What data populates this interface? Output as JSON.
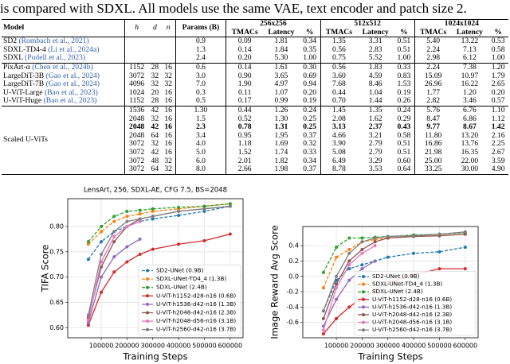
{
  "caption": "is compared with SDXL. All models use the same VAE, text encoder and patch size 2.",
  "table": {
    "columns": [
      "Model",
      "h",
      "d",
      "n",
      "Params (B)"
    ],
    "resolutions": [
      "256x256",
      "512x512",
      "1024x1024"
    ],
    "subcolumns": [
      "TMACs",
      "Latency",
      "%"
    ],
    "rows": [
      {
        "model": "SD2",
        "cite": "(Rombach et al., 2021)",
        "cells": [
          "0.9",
          "0.09",
          "1.81",
          "0.34",
          "1.35",
          "3.31",
          "0.51",
          "5.40",
          "13.22",
          "0.53"
        ]
      },
      {
        "model": "SDXL-TD4-4",
        "cite": "(Li et al., 2024a)",
        "cells": [
          "1.3",
          "0.14",
          "1.84",
          "0.35",
          "0.56",
          "2.83",
          "0.51",
          "2.24",
          "7.13",
          "0.58"
        ]
      },
      {
        "model": "SDXL",
        "cite": "(Podell et al., 2023)",
        "cells": [
          "2.4",
          "0.20",
          "5.30",
          "1.00",
          "0.75",
          "5.52",
          "1.00",
          "2.98",
          "6.12",
          "1.00"
        ]
      },
      {
        "model": "PixArt-α",
        "cite": "(Chen et al., 2024b)",
        "hdn": [
          "1152",
          "28",
          "16"
        ],
        "cells": [
          "0.6",
          "0.14",
          "1.61",
          "0.30",
          "0.56",
          "1.83",
          "0.33",
          "2.24",
          "7.38",
          "1.20"
        ]
      },
      {
        "model": "LargeDiT-3B",
        "cite": "(Gao et al., 2024)",
        "hdn": [
          "3072",
          "32",
          "32"
        ],
        "cells": [
          "3.0",
          "0.90",
          "3.65",
          "0.69",
          "3.60",
          "4.59",
          "0.83",
          "15.09",
          "10.97",
          "1.79"
        ]
      },
      {
        "model": "LargeDiT-7B",
        "cite": "(Gao et al., 2024)",
        "hdn": [
          "4096",
          "32",
          "32"
        ],
        "cells": [
          "7.0",
          "1.90",
          "4.97",
          "0.94",
          "7.68",
          "8.46",
          "1.53",
          "26.96",
          "16.22",
          "2.65"
        ]
      },
      {
        "model": "U-ViT-Large",
        "cite": "(Bao et al., 2023)",
        "hdn": [
          "1024",
          "20",
          "16"
        ],
        "cells": [
          "0.3",
          "0.11",
          "1.07",
          "0.20",
          "0.44",
          "1.04",
          "0.19",
          "1.77",
          "1.20",
          "0.20"
        ]
      },
      {
        "model": "U-ViT-Huge",
        "cite": "(Bao et al., 2023)",
        "hdn": [
          "1152",
          "28",
          "16"
        ],
        "cells": [
          "0.5",
          "0.17",
          "0.99",
          "0.19",
          "0.70",
          "1.44",
          "0.26",
          "2.82",
          "3.46",
          "0.57"
        ]
      }
    ],
    "group_label": "Scaled U-ViTs",
    "scaled_rows": [
      {
        "hdn": [
          "1536",
          "42",
          "16"
        ],
        "cells": [
          "1.30",
          "0.44",
          "1.26",
          "0.24",
          "1.45",
          "1.35",
          "0.24",
          "5.76",
          "6.76",
          "1.10"
        ]
      },
      {
        "hdn": [
          "2048",
          "32",
          "16"
        ],
        "cells": [
          "1.5",
          "0.52",
          "1.30",
          "0.25",
          "2.08",
          "1.62",
          "0.29",
          "8.47",
          "6.86",
          "1.12"
        ]
      },
      {
        "hdn": [
          "2048",
          "42",
          "16"
        ],
        "bold": true,
        "cells": [
          "2.3",
          "0.78",
          "1.31",
          "0.25",
          "3.13",
          "2.37",
          "0.43",
          "9.77",
          "8.67",
          "1.42"
        ]
      },
      {
        "hdn": [
          "2048",
          "64",
          "16"
        ],
        "cells": [
          "3.4",
          "0.95",
          "1.95",
          "0.37",
          "4.66",
          "3.21",
          "0.58",
          "11.80",
          "13.20",
          "2.16"
        ]
      },
      {
        "hdn": [
          "3072",
          "32",
          "16"
        ],
        "cells": [
          "4.0",
          "1.18",
          "1.69",
          "0.32",
          "3.90",
          "2.79",
          "0.51",
          "16.86",
          "13.76",
          "2.25"
        ]
      },
      {
        "hdn": [
          "3072",
          "42",
          "16"
        ],
        "cells": [
          "5.0",
          "1.52",
          "1.74",
          "0.33",
          "5.08",
          "2.79",
          "0.51",
          "21.98",
          "16.35",
          "2.67"
        ]
      },
      {
        "hdn": [
          "3072",
          "48",
          "32"
        ],
        "cells": [
          "6.0",
          "2.01",
          "1.82",
          "0.34",
          "6.49",
          "3.29",
          "0.60",
          "25.00",
          "22.00",
          "3.59"
        ]
      },
      {
        "hdn": [
          "3072",
          "64",
          "32"
        ],
        "cells": [
          "8.0",
          "2.66",
          "1.98",
          "0.37",
          "8.78",
          "3.53",
          "0.64",
          "33.25",
          "30.00",
          "4.90"
        ]
      }
    ]
  },
  "chart_data": [
    {
      "type": "line",
      "title": "LensArt, 256, SDXL-AE, CFG 7.5, BS=2048",
      "xlabel": "Training Steps",
      "ylabel": "TIFA Score",
      "grid": true,
      "legend": "lower right",
      "x": [
        50000,
        100000,
        150000,
        200000,
        250000,
        300000,
        400000,
        500000,
        600000
      ],
      "xlim": [
        -30000,
        650000
      ],
      "xticks": [
        100000,
        200000,
        300000,
        400000,
        500000,
        600000
      ],
      "ylim": [
        0.58,
        0.855
      ],
      "yticks": [
        {
          "value": 0.6,
          "label": "0.60"
        },
        {
          "value": 0.65,
          "label": "0.65"
        },
        {
          "value": 0.7,
          "label": "0.70"
        },
        {
          "value": 0.75,
          "label": "0.75"
        },
        {
          "value": 0.8,
          "label": "0.80"
        }
      ],
      "series": [
        {
          "name": "SD2-UNet (0.9B)",
          "color": "#1f77b4",
          "dashed": true,
          "values": [
            0.735,
            0.77,
            0.79,
            0.8,
            0.81,
            0.815,
            0.822,
            0.83,
            0.84
          ]
        },
        {
          "name": "SDXL-UNet-TD4_4 (1.3B)",
          "color": "#ff7f0e",
          "dashed": true,
          "values": [
            0.765,
            0.79,
            0.81,
            0.82,
            0.825,
            0.83,
            0.835,
            0.84,
            0.845
          ]
        },
        {
          "name": "SDXL-UNet (2.4B)",
          "color": "#2ca02c",
          "dashed": true,
          "values": [
            0.77,
            0.8,
            0.82,
            0.83,
            0.832,
            0.835,
            0.838,
            0.84,
            0.845
          ]
        },
        {
          "name": "U-ViT-h1152-d28-n16 (0.6B)",
          "color": "#d62728",
          "dashed": false,
          "values": [
            0.605,
            0.67,
            0.71,
            0.73,
            0.745,
            0.755,
            0.765,
            0.772,
            0.785
          ]
        },
        {
          "name": "U-ViT-h1536-d42-n16 (1.3B)",
          "color": "#9467bd",
          "dashed": false,
          "values": [
            0.61,
            0.7,
            0.74,
            0.76,
            0.775,
            null,
            null,
            null,
            null
          ]
        },
        {
          "name": "U-ViT-h2048-d42-n16 (2.3B)",
          "color": "#8c564b",
          "dashed": false,
          "values": [
            0.62,
            0.72,
            0.77,
            0.8,
            0.815,
            0.82,
            0.83,
            0.835,
            0.84
          ]
        },
        {
          "name": "U-ViT-h2048-d56-n16 (3.1B)",
          "color": "#e377c2",
          "dashed": false,
          "values": [
            0.615,
            0.73,
            0.78,
            0.8,
            0.81,
            null,
            null,
            null,
            null
          ]
        },
        {
          "name": "U-ViT-h2560-d42-n16 (3.7B)",
          "color": "#7f7f7f",
          "dashed": false,
          "values": [
            0.625,
            0.745,
            0.79,
            0.81,
            0.815,
            0.82,
            0.83,
            0.835,
            0.84
          ]
        }
      ]
    },
    {
      "type": "line",
      "xlabel": "Training Steps",
      "ylabel": "Image Reward Avg Score",
      "grid": true,
      "legend": "lower right",
      "x": [
        50000,
        100000,
        150000,
        200000,
        250000,
        300000,
        400000,
        500000,
        600000
      ],
      "xlim": [
        -30000,
        650000
      ],
      "xticks": [
        100000,
        200000,
        300000,
        400000,
        500000,
        600000
      ],
      "ylim": [
        -0.8,
        0.65
      ],
      "yticks": [
        -0.6,
        -0.4,
        -0.2,
        {
          "value": 0,
          "label": "0.0"
        },
        0.2,
        0.4
      ],
      "series": [
        {
          "name": "SD2-UNet (0.9B)",
          "color": "#1f77b4",
          "dashed": true,
          "values": [
            -0.45,
            -0.05,
            0.1,
            0.15,
            0.2,
            0.25,
            0.3,
            0.32,
            0.38
          ]
        },
        {
          "name": "SDXL-UNet-TD4_4 (1.3B)",
          "color": "#ff7f0e",
          "dashed": true,
          "values": [
            -0.15,
            0.25,
            0.35,
            0.45,
            0.48,
            0.5,
            0.52,
            0.53,
            0.55
          ]
        },
        {
          "name": "SDXL-UNet (2.4B)",
          "color": "#2ca02c",
          "dashed": true,
          "values": [
            0.05,
            0.38,
            0.5,
            0.5,
            0.51,
            0.52,
            0.54,
            0.55,
            0.57
          ]
        },
        {
          "name": "U-ViT-h1152-d28-n16 (0.6B)",
          "color": "#d62728",
          "dashed": false,
          "values": [
            -0.75,
            -0.55,
            -0.4,
            -0.28,
            -0.18,
            -0.08,
            0.02,
            0.1,
            0.1
          ]
        },
        {
          "name": "U-ViT-h1536-d42-n16 (1.3B)",
          "color": "#9467bd",
          "dashed": false,
          "values": [
            -0.65,
            -0.3,
            -0.05,
            0.1,
            0.2,
            null,
            null,
            null,
            null
          ]
        },
        {
          "name": "U-ViT-h2048-d42-n16 (2.3B)",
          "color": "#8c564b",
          "dashed": false,
          "values": [
            -0.55,
            -0.1,
            0.2,
            0.35,
            0.45,
            0.5,
            0.52,
            0.53,
            0.55
          ]
        },
        {
          "name": "U-ViT-h2048-d56-n16 (3.1B)",
          "color": "#e377c2",
          "dashed": false,
          "values": [
            -0.7,
            -0.15,
            0.15,
            0.3,
            0.4,
            null,
            null,
            null,
            null
          ]
        },
        {
          "name": "U-ViT-h2560-d42-n16 (3.7B)",
          "color": "#7f7f7f",
          "dashed": false,
          "values": [
            -0.45,
            0,
            0.3,
            0.45,
            0.5,
            0.52,
            0.53,
            0.55,
            0.58
          ]
        }
      ]
    }
  ]
}
